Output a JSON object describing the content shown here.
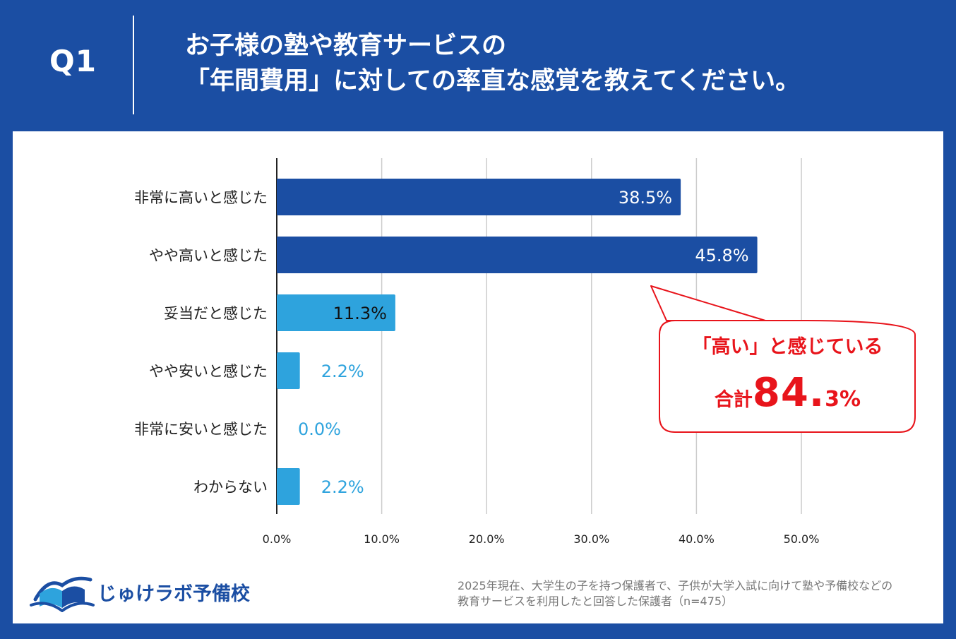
{
  "header": {
    "q_label": "Q1",
    "question_line1": "お子様の塾や教育サービスの",
    "question_line2": "「年間費用」に対しての率直な感覚を教えてください。"
  },
  "chart_data": {
    "type": "bar",
    "orientation": "horizontal",
    "categories": [
      "非常に高いと感じた",
      "やや高いと感じた",
      "妥当だと感じた",
      "やや安いと感じた",
      "非常に安いと感じた",
      "わからない"
    ],
    "values": [
      38.5,
      45.8,
      11.3,
      2.2,
      0.0,
      2.2
    ],
    "value_labels": [
      "38.5%",
      "45.8%",
      "11.3%",
      "2.2%",
      "0.0%",
      "2.2%"
    ],
    "xlim": [
      0,
      50
    ],
    "xticks": [
      "0.0%",
      "10.0%",
      "20.0%",
      "30.0%",
      "40.0%",
      "50.0%"
    ],
    "grid": true,
    "colors": {
      "dark_bar": "#1b4ea3",
      "light_bar": "#2ea3dd",
      "axis": "#222222",
      "grid": "#cccccc"
    }
  },
  "callout": {
    "line1": "「高い」と感じている",
    "total_label": "合計",
    "total_value": "84.",
    "total_decimal": "3%",
    "color": "#e8141b"
  },
  "logo": {
    "name": "じゅけラボ予備校",
    "icon": "open-book-icon"
  },
  "footnote": {
    "line1": "2025年現在、大学生の子を持つ保護者で、子供が大学入試に向けて塾や予備校などの",
    "line2": "教育サービスを利用したと回答した保護者（n=475）"
  }
}
